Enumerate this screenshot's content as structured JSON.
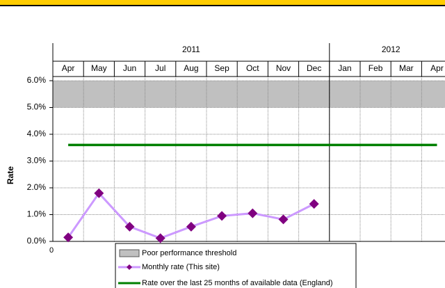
{
  "chart_data": {
    "type": "line",
    "y_axis_label": "Rate",
    "x_axis_label": "0",
    "categories": [
      "Apr",
      "May",
      "Jun",
      "Jul",
      "Aug",
      "Sep",
      "Oct",
      "Nov",
      "Dec",
      "Jan",
      "Feb",
      "Mar",
      "Apr"
    ],
    "years": [
      {
        "label": "2011",
        "start": 0,
        "end": 8
      },
      {
        "label": "2012",
        "start": 9,
        "end": 12
      }
    ],
    "ylim": [
      0,
      6
    ],
    "yticks": [
      {
        "value": 0,
        "label": "0.0%"
      },
      {
        "value": 1,
        "label": "1.0%"
      },
      {
        "value": 2,
        "label": "2.0%"
      },
      {
        "value": 3,
        "label": "3.0%"
      },
      {
        "value": 4,
        "label": "4.0%"
      },
      {
        "value": 5,
        "label": "5.0%"
      },
      {
        "value": 6,
        "label": "6.0%"
      }
    ],
    "grid": true,
    "threshold": {
      "name": "Poor performance threshold",
      "range": [
        5,
        6
      ],
      "color": "#c0c0c0"
    },
    "series": [
      {
        "name": "Monthly rate (This site)",
        "color": "#cc99ff",
        "marker_color": "#800080",
        "values": [
          0.15,
          1.8,
          0.55,
          0.12,
          0.55,
          0.95,
          1.05,
          0.82,
          1.4,
          null,
          null,
          null,
          null
        ]
      },
      {
        "name": "Rate over the last 25 months of available data (England)",
        "color": "#008000",
        "values": [
          3.6,
          3.6,
          3.6,
          3.6,
          3.6,
          3.6,
          3.6,
          3.6,
          3.6,
          3.6,
          3.6,
          3.6,
          3.6
        ]
      }
    ],
    "legend": "bottom"
  }
}
